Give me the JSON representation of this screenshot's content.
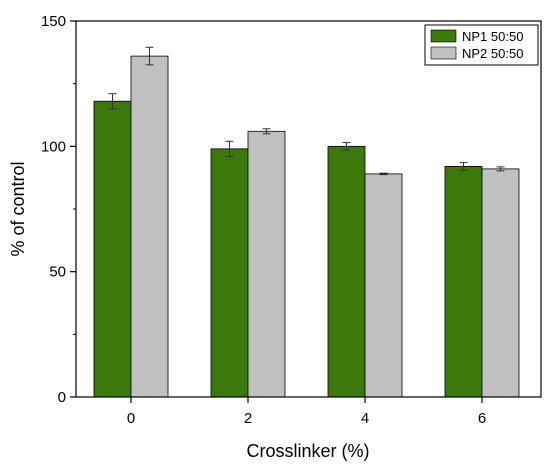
{
  "chart_data": {
    "type": "bar",
    "categories": [
      "0",
      "2",
      "4",
      "6"
    ],
    "series": [
      {
        "name": "NP1 50:50",
        "color": "#3a7a0a",
        "values": [
          118,
          99,
          100,
          92
        ],
        "errors": [
          3,
          3,
          1.5,
          1.5
        ]
      },
      {
        "name": "NP2 50:50",
        "color": "#c0c0c0",
        "values": [
          136,
          106,
          89,
          91
        ],
        "errors": [
          3.5,
          1,
          0.3,
          0.8
        ]
      }
    ],
    "xlabel": "Crosslinker (%)",
    "ylabel": "% of control",
    "ylim": [
      0,
      150
    ],
    "yticks": [
      0,
      50,
      100,
      150
    ],
    "legend": "top-right",
    "grid": false
  }
}
